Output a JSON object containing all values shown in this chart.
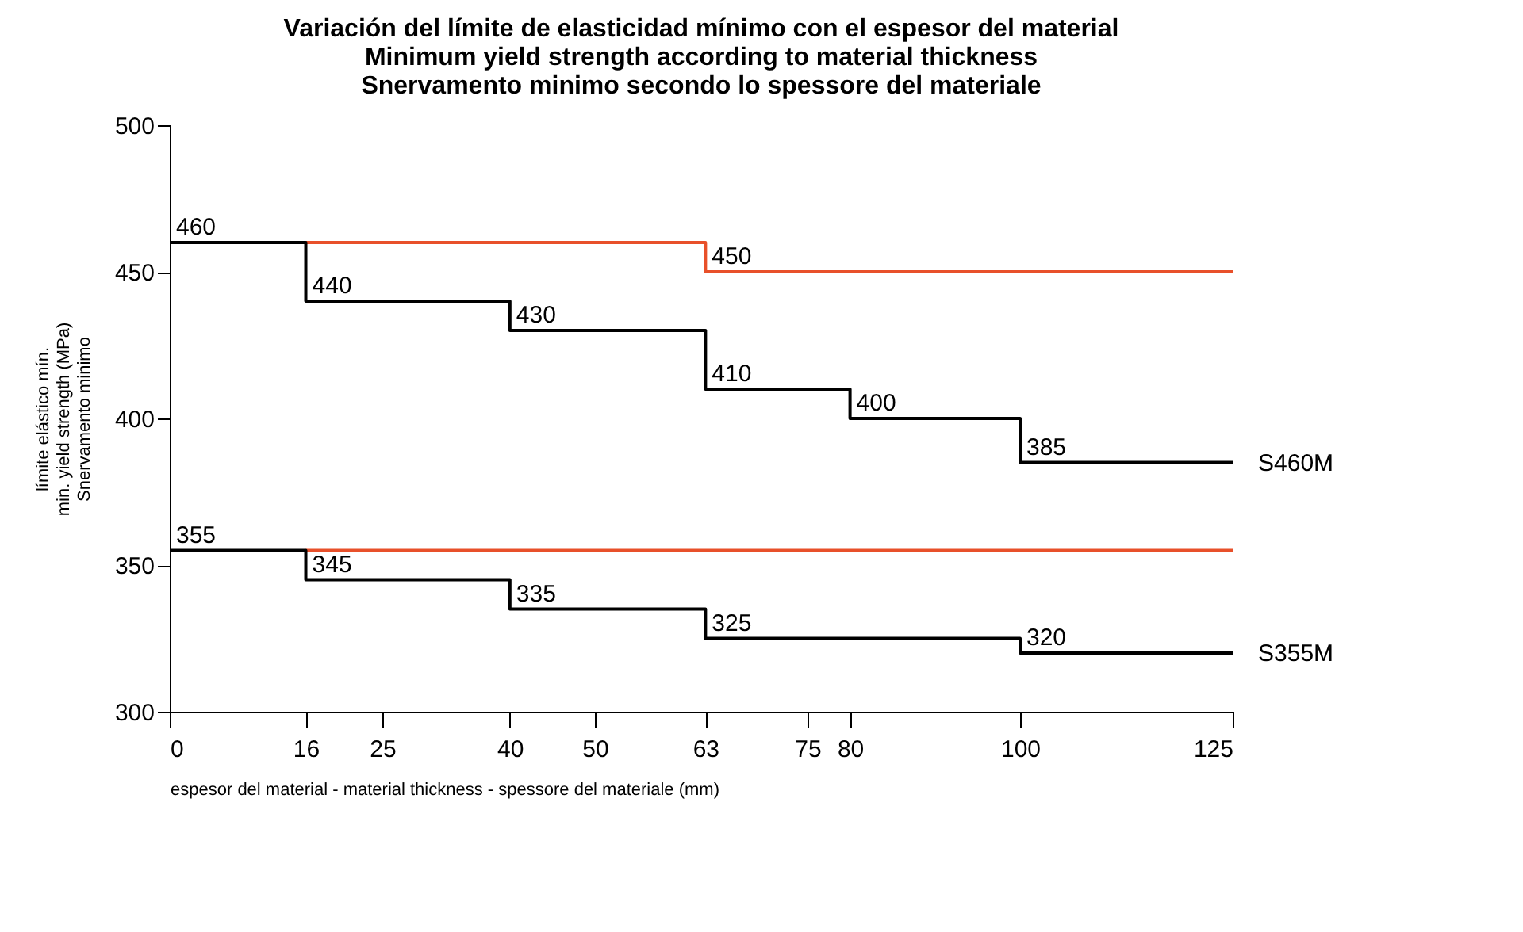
{
  "chart_data": {
    "type": "step",
    "title": "Variación del límite de elasticidad mínimo con el espesor del material\nMinimum yield strength according to material thickness\nSnervamento minimo secondo lo spessore del materiale",
    "xlabel": "espesor del material - material thickness - spessore del materiale (mm)",
    "ylabel": "límite elástico mín.\nmin. yield strength   (MPa)\nSnervamento minimo",
    "xlim": [
      0,
      125
    ],
    "xticks": [
      0,
      16,
      25,
      40,
      50,
      63,
      75,
      80,
      100,
      125
    ],
    "ylim": [
      300,
      500
    ],
    "yticks": [
      300,
      350,
      400,
      450,
      500
    ],
    "line_style": "solid",
    "series": [
      {
        "color": "#e8502a",
        "x": [
          16,
          63,
          125
        ],
        "values": [
          460,
          450,
          450
        ],
        "value_labels": [
          null,
          "450",
          null
        ]
      },
      {
        "color": "#e8502a",
        "x": [
          16,
          125
        ],
        "values": [
          355,
          355
        ],
        "value_labels": [
          null,
          null
        ]
      },
      {
        "name": "S460M",
        "color": "#000000",
        "x": [
          0,
          16,
          40,
          63,
          80,
          100,
          125
        ],
        "values": [
          460,
          440,
          430,
          410,
          400,
          385,
          385
        ],
        "value_labels": [
          "460",
          "440",
          "430",
          "410",
          "400",
          "385",
          null
        ]
      },
      {
        "name": "S355M",
        "color": "#000000",
        "x": [
          0,
          16,
          40,
          63,
          100,
          125
        ],
        "values": [
          355,
          345,
          335,
          325,
          320,
          320
        ],
        "value_labels": [
          "355",
          "345",
          "335",
          "325",
          "320",
          null
        ]
      }
    ]
  }
}
